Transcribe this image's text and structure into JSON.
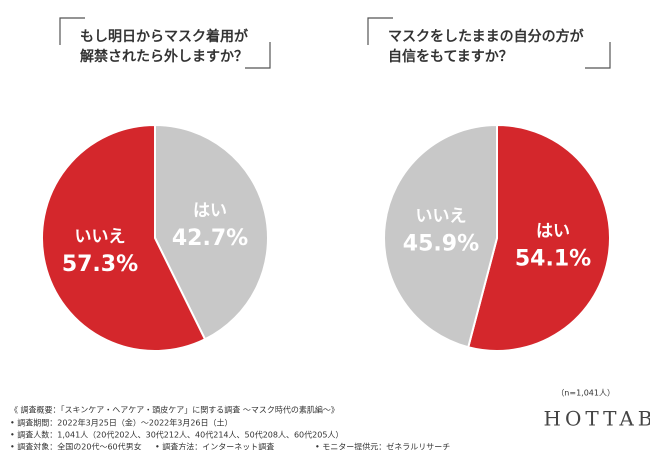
{
  "chart_data": [
    {
      "type": "pie",
      "title": [
        "もし明日からマスク着用が",
        "解禁されたら外しますか？"
      ],
      "categories": [
        "はい",
        "いいえ"
      ],
      "values": [
        42.7,
        57.3
      ],
      "value_labels": [
        "42.7%",
        "57.3%"
      ],
      "colors": [
        "#c8c8c8",
        "#d4272c"
      ]
    },
    {
      "type": "pie",
      "title": [
        "マスクをしたままの自分の方が",
        "自信をもてますか？"
      ],
      "categories": [
        "はい",
        "いいえ"
      ],
      "values": [
        54.1,
        45.9
      ],
      "value_labels": [
        "54.1%",
        "45.9%"
      ],
      "colors": [
        "#d4272c",
        "#c8c8c8"
      ]
    }
  ],
  "sample_size": "（n=1,041人）",
  "brand": "HOTTAB",
  "notes": [
    "《 調査概要：「スキンケア・ヘアケア・頭皮ケア」に関する調査 〜マスク時代の素肌編〜》",
    "• 調査期間：2022年3月25日（金）〜2022年3月26日（土）",
    "• 調査人数：1,041人（20代202人、30代212人、40代214人、50代208人、60代205人）"
  ],
  "notes_last": [
    "• 調査対象：全国の20代〜60代男女",
    "• 調査方法：インターネット調査",
    "• モニター提供元：ゼネラルリサーチ"
  ]
}
